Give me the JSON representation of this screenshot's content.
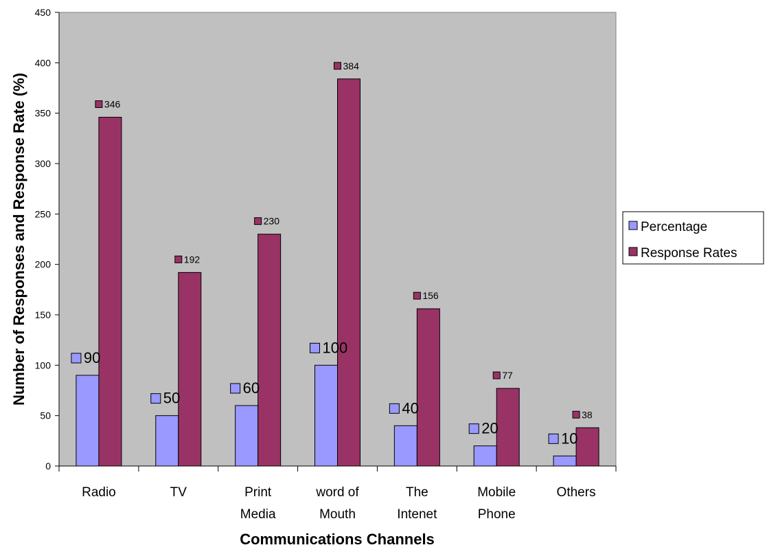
{
  "chart_data": {
    "type": "bar",
    "categories": [
      "Radio",
      "TV",
      "Print Media",
      "word of Mouth",
      "The Intenet",
      "Mobile Phone",
      "Others"
    ],
    "series": [
      {
        "name": "Percentage",
        "values": [
          90,
          50,
          60,
          100,
          40,
          20,
          10
        ]
      },
      {
        "name": "Response Rates",
        "values": [
          346,
          192,
          230,
          384,
          156,
          77,
          38
        ]
      }
    ],
    "title": "",
    "xlabel": "Communications Channels",
    "ylabel": "Number of Responses and Response Rate (%)",
    "ylim": [
      0,
      450
    ],
    "yticks": [
      "0",
      "50",
      "100",
      "150",
      "200",
      "250",
      "300",
      "350",
      "400",
      "450"
    ],
    "grid": false,
    "legend": "right",
    "data_labels": true,
    "colors": {
      "plot_background": "#c0c0c0",
      "Percentage": "#9999ff",
      "Response Rates": "#993366"
    }
  }
}
